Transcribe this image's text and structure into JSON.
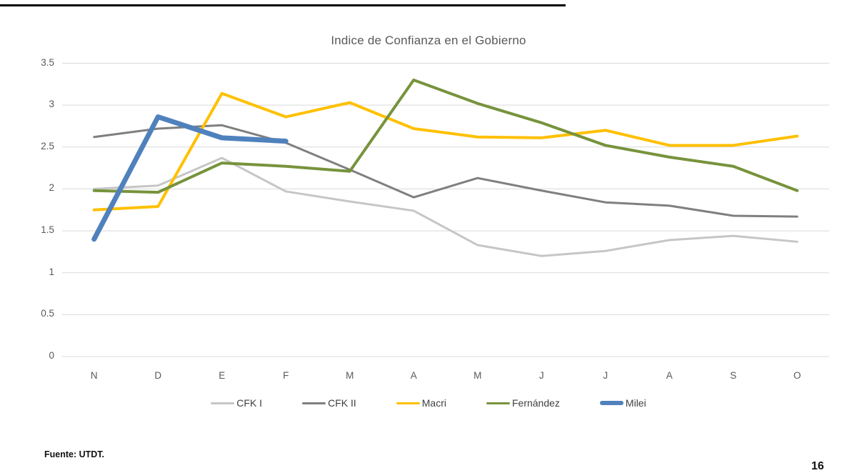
{
  "page": {
    "source_note": "Fuente: UTDT.",
    "page_number": "16"
  },
  "colors": {
    "gridline": "#d9d9d9",
    "axis_text": "#595959",
    "title_text": "#595959"
  },
  "chart_data": {
    "type": "line",
    "title": "Indice de Confianza en el Gobierno",
    "xlabel": "",
    "ylabel": "",
    "x_labels": [
      "N",
      "D",
      "E",
      "F",
      "M",
      "A",
      "M",
      "J",
      "J",
      "A",
      "S",
      "O"
    ],
    "y_ticks": [
      "3.5",
      "3",
      "2.5",
      "2",
      "1.5",
      "1",
      "0.5",
      "0"
    ],
    "ylim": [
      0,
      3.5
    ],
    "grid": true,
    "legend_position": "bottom",
    "series": [
      {
        "name": "CFK I",
        "color": "#c6c6c6",
        "width": 3,
        "values": [
          2.0,
          2.04,
          2.37,
          1.97,
          1.85,
          1.74,
          1.33,
          1.2,
          1.26,
          1.39,
          1.44,
          1.37
        ]
      },
      {
        "name": "CFK II",
        "color": "#7f7f7f",
        "width": 3,
        "values": [
          2.62,
          2.72,
          2.76,
          2.55,
          2.23,
          1.9,
          2.13,
          1.98,
          1.84,
          1.8,
          1.68,
          1.67
        ]
      },
      {
        "name": "Macri",
        "color": "#ffc000",
        "width": 4,
        "values": [
          1.75,
          1.79,
          3.14,
          2.86,
          3.03,
          2.72,
          2.62,
          2.61,
          2.7,
          2.52,
          2.52,
          2.63
        ]
      },
      {
        "name": "Fernández",
        "color": "#77933c",
        "width": 4,
        "values": [
          1.98,
          1.96,
          2.31,
          2.27,
          2.21,
          3.3,
          3.02,
          2.79,
          2.52,
          2.38,
          2.27,
          1.98
        ]
      },
      {
        "name": "Milei",
        "color": "#4f81bd",
        "width": 7,
        "values": [
          1.4,
          2.86,
          2.61,
          2.57,
          null,
          null,
          null,
          null,
          null,
          null,
          null,
          null
        ]
      }
    ]
  }
}
